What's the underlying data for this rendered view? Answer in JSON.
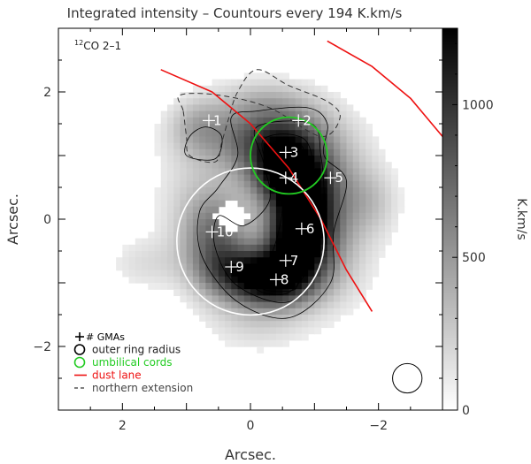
{
  "chart_data": {
    "type": "heatmap",
    "title": "Integrated intensity – Countours every 194 K.km/s",
    "xlabel": "Arcsec.",
    "ylabel": "Arcsec.",
    "xlim": [
      3,
      -3
    ],
    "ylim": [
      -3,
      3
    ],
    "x_ticks": [
      2,
      0,
      -2
    ],
    "y_ticks": [
      2,
      0,
      -2
    ],
    "tick_labels_x": [
      "2",
      "0",
      "−2"
    ],
    "tick_labels_y": [
      "2",
      "0",
      "−2"
    ],
    "colorbar": {
      "label": "K.km/s",
      "range": [
        0,
        1250
      ],
      "ticks": [
        0,
        500,
        1000
      ],
      "tick_labels": [
        "0",
        "500",
        "1000"
      ]
    },
    "line_label": {
      "prefix": "12",
      "text": "CO 2–1"
    },
    "contour_step": 194,
    "gmas": [
      {
        "id": "1",
        "x": 0.65,
        "y": 1.55
      },
      {
        "id": "2",
        "x": -0.75,
        "y": 1.55
      },
      {
        "id": "3",
        "x": -0.55,
        "y": 1.05
      },
      {
        "id": "4",
        "x": -0.55,
        "y": 0.65
      },
      {
        "id": "5",
        "x": -1.25,
        "y": 0.65
      },
      {
        "id": "6",
        "x": -0.8,
        "y": -0.15
      },
      {
        "id": "7",
        "x": -0.55,
        "y": -0.65
      },
      {
        "id": "8",
        "x": -0.4,
        "y": -0.95
      },
      {
        "id": "9",
        "x": 0.3,
        "y": -0.75
      },
      {
        "id": "10",
        "x": 0.6,
        "y": -0.2
      }
    ],
    "blobs": [
      {
        "x": 0.4,
        "y": 1.3,
        "sx": 0.55,
        "sy": 0.35,
        "a": 320
      },
      {
        "x": -0.5,
        "y": 1.45,
        "sx": 0.6,
        "sy": 0.35,
        "a": 420
      },
      {
        "x": -0.5,
        "y": 1.0,
        "sx": 0.45,
        "sy": 0.35,
        "a": 900
      },
      {
        "x": -0.6,
        "y": 0.6,
        "sx": 0.4,
        "sy": 0.3,
        "a": 650
      },
      {
        "x": -0.8,
        "y": 0.15,
        "sx": 0.35,
        "sy": 0.45,
        "a": 850
      },
      {
        "x": -0.75,
        "y": -0.35,
        "sx": 0.35,
        "sy": 0.4,
        "a": 950
      },
      {
        "x": -0.4,
        "y": -0.95,
        "sx": 0.45,
        "sy": 0.3,
        "a": 1000
      },
      {
        "x": 0.1,
        "y": -0.85,
        "sx": 0.45,
        "sy": 0.3,
        "a": 650
      },
      {
        "x": 0.55,
        "y": -0.35,
        "sx": 0.35,
        "sy": 0.5,
        "a": 620
      },
      {
        "x": -1.3,
        "y": 0.5,
        "sx": 0.5,
        "sy": 0.6,
        "a": 380
      },
      {
        "x": -1.2,
        "y": -0.6,
        "sx": 0.5,
        "sy": 0.6,
        "a": 260
      },
      {
        "x": 0.8,
        "y": 0.3,
        "sx": 0.5,
        "sy": 0.6,
        "a": 200
      },
      {
        "x": -0.1,
        "y": -1.6,
        "sx": 0.55,
        "sy": 0.35,
        "a": 200
      },
      {
        "x": 1.6,
        "y": -0.7,
        "sx": 0.45,
        "sy": 0.3,
        "a": 160
      },
      {
        "x": 0.85,
        "y": 1.5,
        "sx": 0.3,
        "sy": 0.3,
        "a": 220
      },
      {
        "x": -1.9,
        "y": 0.25,
        "sx": 0.3,
        "sy": 0.35,
        "a": 160
      },
      {
        "x": -0.2,
        "y": 1.9,
        "sx": 0.55,
        "sy": 0.25,
        "a": 200
      }
    ],
    "hole": {
      "x": 0.3,
      "y": 0.05,
      "sx": 0.28,
      "sy": 0.22
    },
    "outer_ring": {
      "cx": 0.0,
      "cy": -0.35,
      "r": 1.15
    },
    "umbilical_cord": {
      "cx": -0.6,
      "cy": 1.0,
      "r": 0.6
    },
    "dust_lanes": [
      {
        "points": [
          [
            1.4,
            2.35
          ],
          [
            0.6,
            2.0
          ],
          [
            0.0,
            1.5
          ],
          [
            -0.6,
            0.8
          ],
          [
            -1.1,
            0.0
          ],
          [
            -1.5,
            -0.8
          ],
          [
            -1.9,
            -1.45
          ]
        ]
      },
      {
        "points": [
          [
            -1.2,
            2.8
          ],
          [
            -1.9,
            2.4
          ],
          [
            -2.5,
            1.9
          ],
          [
            -3.0,
            1.3
          ]
        ]
      }
    ],
    "northern_extension": [
      [
        1.05,
        1.7
      ],
      [
        1.0,
        1.3
      ],
      [
        0.95,
        1.0
      ],
      [
        0.55,
        0.9
      ],
      [
        0.45,
        1.2
      ],
      [
        0.35,
        1.55
      ],
      [
        0.2,
        2.0
      ],
      [
        -0.1,
        2.35
      ],
      [
        -0.6,
        2.1
      ],
      [
        -1.2,
        1.85
      ],
      [
        -1.4,
        1.6
      ],
      [
        -1.1,
        1.3
      ],
      [
        -0.3,
        1.75
      ],
      [
        0.5,
        1.95
      ],
      [
        1.1,
        1.95
      ]
    ],
    "beam": {
      "x": -2.45,
      "y": -2.5,
      "r": 0.23
    },
    "legend": {
      "position": "bottom-left",
      "items": [
        {
          "symbol": "gma",
          "label": "GMAs",
          "color": "#000000"
        },
        {
          "symbol": "circle",
          "label": "outer ring radius",
          "color": "#000000"
        },
        {
          "symbol": "circle",
          "label": "umbilical cords",
          "color": "#22cc22"
        },
        {
          "symbol": "line",
          "label": "dust lane",
          "color": "#ee1111"
        },
        {
          "symbol": "dash",
          "label": "northern extension",
          "color": "#333333"
        }
      ]
    },
    "gma_prefix": "+#",
    "colors": {
      "gma_marker": "#ffffff",
      "outer_ring": "#ffffff",
      "umbilical_cord": "#22cc22",
      "dust_lane": "#ee1111",
      "contour": "#000000"
    }
  }
}
